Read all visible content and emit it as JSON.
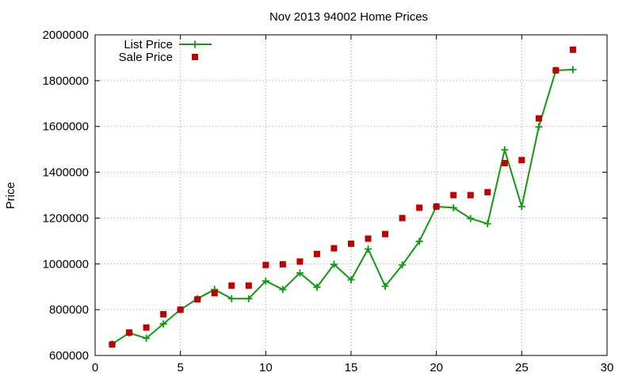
{
  "chart_data": {
    "type": "line",
    "title": "Nov 2013 94002 Home Prices",
    "xlabel": "",
    "ylabel": "Price",
    "xlim": [
      0,
      30
    ],
    "ylim": [
      600000,
      2000000
    ],
    "xticks": [
      0,
      5,
      10,
      15,
      20,
      25,
      30
    ],
    "yticks": [
      600000,
      800000,
      1000000,
      1200000,
      1400000,
      1600000,
      1800000,
      2000000
    ],
    "xtick_labels": [
      "0",
      "5",
      "10",
      "15",
      "20",
      "25",
      "30"
    ],
    "ytick_labels": [
      "600000",
      "800000",
      "1000000",
      "1200000",
      "1400000",
      "1600000",
      "1800000",
      "2000000"
    ],
    "grid": true,
    "legend_position": "top-left",
    "series": [
      {
        "name": "List Price",
        "style": "line-with-plus-markers",
        "color": "#109a10",
        "x": [
          1,
          2,
          3,
          4,
          5,
          6,
          7,
          8,
          9,
          10,
          11,
          12,
          13,
          14,
          15,
          16,
          17,
          18,
          19,
          20,
          21,
          22,
          23,
          24,
          25,
          26,
          27,
          28
        ],
        "y": [
          650000,
          698000,
          675000,
          738000,
          800000,
          848000,
          888000,
          848000,
          848000,
          925000,
          888000,
          960000,
          898000,
          998000,
          930000,
          1065000,
          902000,
          995000,
          1098000,
          1250000,
          1245000,
          1198000,
          1175000,
          1498000,
          1250000,
          1598000,
          1845000,
          1848000
        ]
      },
      {
        "name": "Sale Price",
        "style": "square-markers",
        "color": "#c00000",
        "x": [
          1,
          2,
          3,
          4,
          5,
          6,
          7,
          8,
          9,
          10,
          11,
          12,
          13,
          14,
          15,
          16,
          17,
          18,
          19,
          20,
          21,
          22,
          23,
          24,
          25,
          26,
          27,
          28
        ],
        "y": [
          648000,
          700000,
          722000,
          780000,
          800000,
          845000,
          872000,
          905000,
          905000,
          995000,
          998000,
          1010000,
          1043000,
          1068000,
          1088000,
          1110000,
          1130000,
          1200000,
          1245000,
          1250000,
          1300000,
          1300000,
          1313000,
          1440000,
          1453000,
          1635000,
          1845000,
          1935000
        ]
      }
    ]
  }
}
